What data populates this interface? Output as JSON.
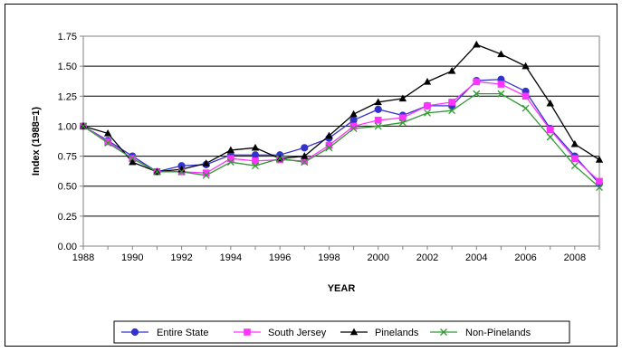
{
  "chart_data": {
    "type": "line",
    "title": "",
    "xlabel": "YEAR",
    "ylabel": "Index (1988=1)",
    "xlim": [
      1988,
      2009
    ],
    "ylim": [
      0,
      1.75
    ],
    "x_ticks": [
      "1988",
      "1990",
      "1992",
      "1994",
      "1996",
      "1998",
      "2000",
      "2002",
      "2004",
      "2006",
      "2008"
    ],
    "y_ticks": [
      "0.00",
      "0.25",
      "0.50",
      "0.75",
      "1.00",
      "1.25",
      "1.50",
      "1.75"
    ],
    "grid": "horizontal",
    "legend_position": "bottom",
    "x": [
      1988,
      1989,
      1990,
      1991,
      1992,
      1993,
      1994,
      1995,
      1996,
      1997,
      1998,
      1999,
      2000,
      2001,
      2002,
      2003,
      2004,
      2005,
      2006,
      2007,
      2008,
      2009
    ],
    "series": [
      {
        "name": "Entire State",
        "color": "#3333cc",
        "marker": "circle",
        "values": [
          1.0,
          0.88,
          0.75,
          0.62,
          0.67,
          0.68,
          0.76,
          0.76,
          0.76,
          0.82,
          0.9,
          1.05,
          1.14,
          1.09,
          1.17,
          1.17,
          1.38,
          1.39,
          1.29,
          0.98,
          0.75,
          0.52
        ]
      },
      {
        "name": "South Jersey",
        "color": "#ff33ff",
        "marker": "square",
        "values": [
          1.0,
          0.87,
          0.73,
          0.62,
          0.62,
          0.61,
          0.73,
          0.71,
          0.72,
          0.71,
          0.84,
          1.0,
          1.05,
          1.07,
          1.17,
          1.2,
          1.37,
          1.35,
          1.25,
          0.97,
          0.73,
          0.54
        ]
      },
      {
        "name": "Pinelands",
        "color": "#000000",
        "marker": "triangle",
        "values": [
          1.0,
          0.94,
          0.7,
          0.62,
          0.64,
          0.69,
          0.8,
          0.82,
          0.73,
          0.75,
          0.92,
          1.1,
          1.2,
          1.23,
          1.37,
          1.46,
          1.68,
          1.6,
          1.5,
          1.19,
          0.85,
          0.72
        ]
      },
      {
        "name": "Non-Pinelands",
        "color": "#339933",
        "marker": "x",
        "values": [
          1.0,
          0.86,
          0.73,
          0.62,
          0.62,
          0.59,
          0.7,
          0.67,
          0.73,
          0.7,
          0.82,
          0.98,
          1.0,
          1.03,
          1.11,
          1.13,
          1.27,
          1.27,
          1.15,
          0.91,
          0.67,
          0.49
        ]
      }
    ]
  }
}
